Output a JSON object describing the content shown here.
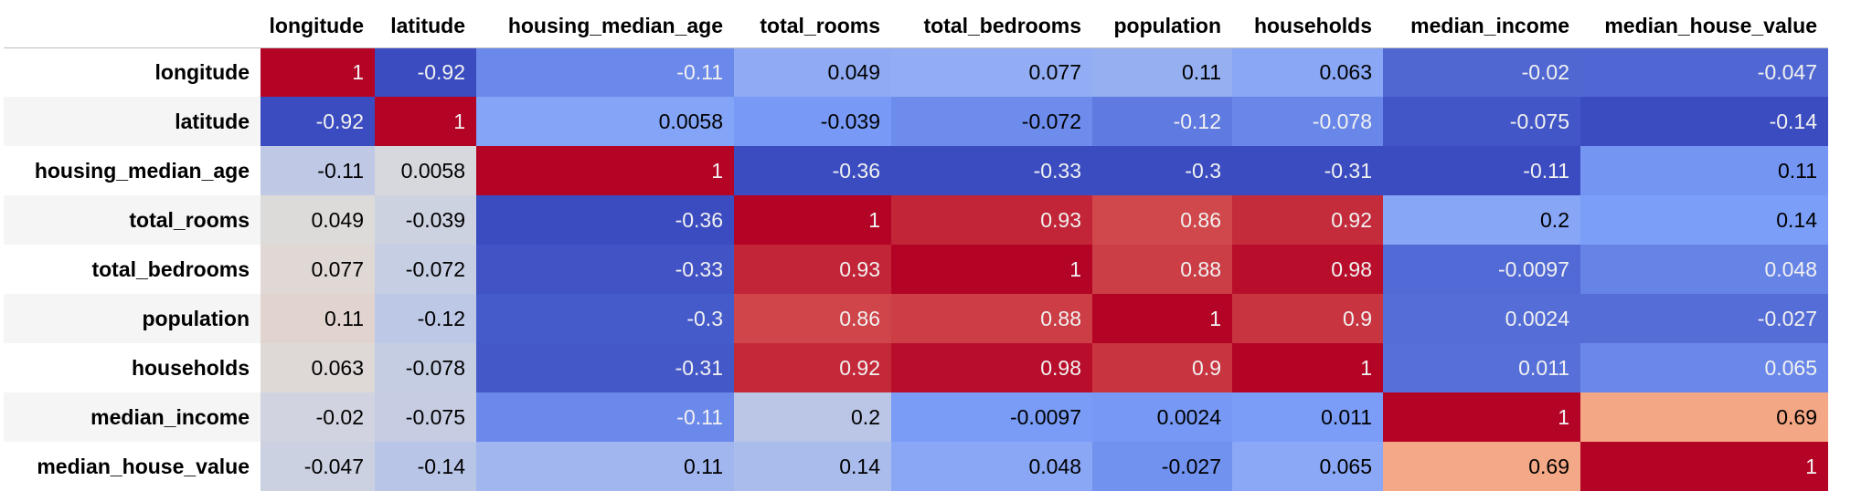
{
  "chart_data": {
    "type": "heatmap",
    "colormap": "coolwarm",
    "columns": [
      "longitude",
      "latitude",
      "housing_median_age",
      "total_rooms",
      "total_bedrooms",
      "population",
      "households",
      "median_income",
      "median_house_value"
    ],
    "rows": [
      "longitude",
      "latitude",
      "housing_median_age",
      "total_rooms",
      "total_bedrooms",
      "population",
      "households",
      "median_income",
      "median_house_value"
    ],
    "values": [
      [
        1,
        -0.92,
        -0.11,
        0.049,
        0.077,
        0.11,
        0.063,
        -0.02,
        -0.047
      ],
      [
        -0.92,
        1,
        0.0058,
        -0.039,
        -0.072,
        -0.12,
        -0.078,
        -0.075,
        -0.14
      ],
      [
        -0.11,
        0.0058,
        1,
        -0.36,
        -0.33,
        -0.3,
        -0.31,
        -0.11,
        0.11
      ],
      [
        0.049,
        -0.039,
        -0.36,
        1,
        0.93,
        0.86,
        0.92,
        0.2,
        0.14
      ],
      [
        0.077,
        -0.072,
        -0.33,
        0.93,
        1,
        0.88,
        0.98,
        -0.0097,
        0.048
      ],
      [
        0.11,
        -0.12,
        -0.3,
        0.86,
        0.88,
        1,
        0.9,
        0.0024,
        -0.027
      ],
      [
        0.063,
        -0.078,
        -0.31,
        0.92,
        0.98,
        0.9,
        1,
        0.011,
        0.065
      ],
      [
        -0.02,
        -0.075,
        -0.11,
        0.2,
        -0.0097,
        0.0024,
        0.011,
        1,
        0.69
      ],
      [
        -0.047,
        -0.14,
        0.11,
        0.14,
        0.048,
        -0.027,
        0.065,
        0.69,
        1
      ]
    ],
    "labels": [
      [
        "1",
        "-0.92",
        "-0.11",
        "0.049",
        "0.077",
        "0.11",
        "0.063",
        "-0.02",
        "-0.047"
      ],
      [
        "-0.92",
        "1",
        "0.0058",
        "-0.039",
        "-0.072",
        "-0.12",
        "-0.078",
        "-0.075",
        "-0.14"
      ],
      [
        "-0.11",
        "0.0058",
        "1",
        "-0.36",
        "-0.33",
        "-0.3",
        "-0.31",
        "-0.11",
        "0.11"
      ],
      [
        "0.049",
        "-0.039",
        "-0.36",
        "1",
        "0.93",
        "0.86",
        "0.92",
        "0.2",
        "0.14"
      ],
      [
        "0.077",
        "-0.072",
        "-0.33",
        "0.93",
        "1",
        "0.88",
        "0.98",
        "-0.0097",
        "0.048"
      ],
      [
        "0.11",
        "-0.12",
        "-0.3",
        "0.86",
        "0.88",
        "1",
        "0.9",
        "0.0024",
        "-0.027"
      ],
      [
        "0.063",
        "-0.078",
        "-0.31",
        "0.92",
        "0.98",
        "0.9",
        "1",
        "0.011",
        "0.065"
      ],
      [
        "-0.02",
        "-0.075",
        "-0.11",
        "0.2",
        "-0.0097",
        "0.0024",
        "0.011",
        "1",
        "0.69"
      ],
      [
        "-0.047",
        "-0.14",
        "0.11",
        "0.14",
        "0.048",
        "-0.027",
        "0.065",
        "0.69",
        "1"
      ]
    ]
  }
}
